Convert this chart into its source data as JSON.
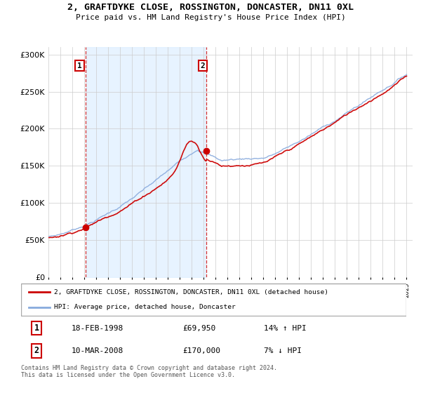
{
  "title": "2, GRAFTDYKE CLOSE, ROSSINGTON, DONCASTER, DN11 0XL",
  "subtitle": "Price paid vs. HM Land Registry's House Price Index (HPI)",
  "hpi_label": "HPI: Average price, detached house, Doncaster",
  "property_label": "2, GRAFTDYKE CLOSE, ROSSINGTON, DONCASTER, DN11 0XL (detached house)",
  "sale1_date": "18-FEB-1998",
  "sale1_price": 69950,
  "sale1_hpi": "14% ↑ HPI",
  "sale2_date": "10-MAR-2008",
  "sale2_price": 170000,
  "sale2_hpi": "7% ↓ HPI",
  "footnote": "Contains HM Land Registry data © Crown copyright and database right 2024.\nThis data is licensed under the Open Government Licence v3.0.",
  "property_color": "#cc0000",
  "hpi_color": "#88aadd",
  "fill_color": "#ddeeff",
  "background_color": "#ffffff",
  "grid_color": "#cccccc",
  "ylim": [
    0,
    310000
  ],
  "yticks": [
    0,
    50000,
    100000,
    150000,
    200000,
    250000,
    300000
  ],
  "sale1_x": 1998.12,
  "sale2_x": 2008.21
}
